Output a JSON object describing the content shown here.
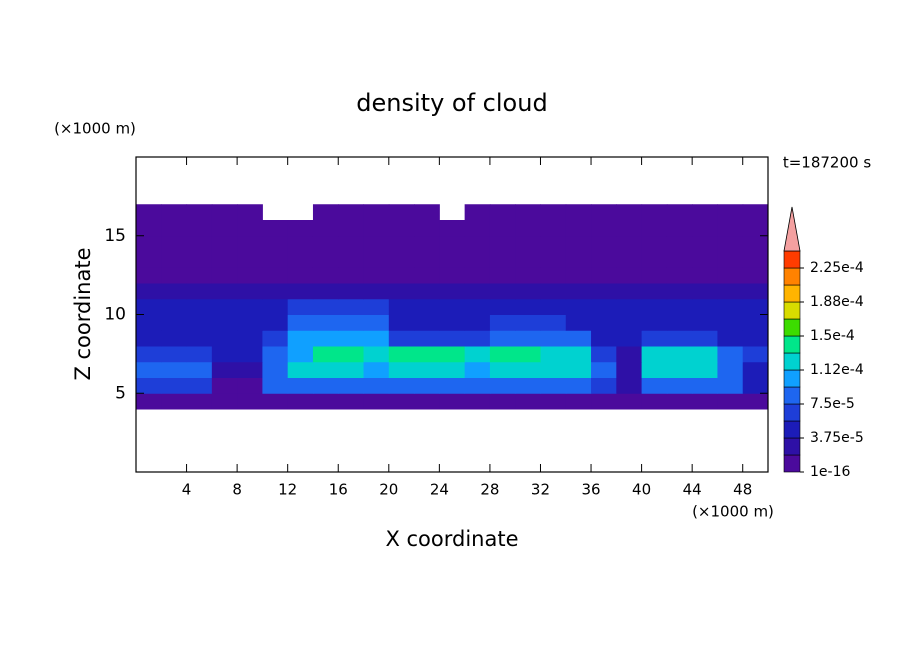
{
  "chart_data": {
    "type": "contour",
    "title": "density of cloud",
    "x_label": "X coordinate",
    "y_label": "Z coordinate",
    "x_unit": "(×1000 m)",
    "y_unit": "(×1000 m)",
    "time_label": "t=187200 s",
    "xlim": [
      0,
      50
    ],
    "ylim": [
      0,
      20
    ],
    "xticks": [
      4,
      8,
      12,
      16,
      20,
      24,
      28,
      32,
      36,
      40,
      44,
      48
    ],
    "yticks": [
      5,
      10,
      15
    ],
    "x": [
      1,
      3,
      5,
      7,
      9,
      11,
      13,
      15,
      17,
      19,
      21,
      23,
      25,
      27,
      29,
      31,
      33,
      35,
      37,
      39,
      41,
      43,
      45,
      47,
      49
    ],
    "y": [
      4.5,
      5.5,
      6.5,
      7.5,
      8.5,
      9.5,
      10.5,
      11.5,
      12.5,
      13.5,
      14.5,
      15.5,
      16.5
    ],
    "z": [
      [
        5e-06,
        5e-06,
        5e-06,
        5e-06,
        5e-06,
        5e-06,
        5e-06,
        5e-06,
        5e-06,
        5e-06,
        5e-06,
        5e-06,
        5e-06,
        5e-06,
        5e-06,
        5e-06,
        5e-06,
        5e-06,
        5e-06,
        5e-06,
        5e-06,
        5e-06,
        5e-06,
        5e-06,
        5e-06
      ],
      [
        6.5e-05,
        6.5e-05,
        6.5e-05,
        5e-06,
        5e-06,
        8.5e-05,
        8.5e-05,
        8.5e-05,
        8.5e-05,
        8.5e-05,
        8.5e-05,
        8.5e-05,
        8.5e-05,
        8.5e-05,
        8.5e-05,
        8.5e-05,
        8.5e-05,
        8.5e-05,
        6.5e-05,
        2.5e-05,
        8.5e-05,
        8.5e-05,
        8.5e-05,
        8.5e-05,
        4.5e-05
      ],
      [
        8.5e-05,
        8.5e-05,
        8.5e-05,
        2.5e-05,
        2.5e-05,
        8.5e-05,
        0.00012,
        0.00012,
        0.00012,
        0.0001,
        0.00012,
        0.00012,
        0.00012,
        0.0001,
        0.00012,
        0.00012,
        0.00012,
        0.00012,
        8.5e-05,
        2.5e-05,
        0.00012,
        0.00012,
        0.00012,
        8.5e-05,
        4.5e-05
      ],
      [
        6.5e-05,
        6.5e-05,
        6.5e-05,
        4.5e-05,
        4.5e-05,
        8.5e-05,
        0.0001,
        0.00014,
        0.00014,
        0.00012,
        0.00014,
        0.00014,
        0.00014,
        0.00012,
        0.00014,
        0.00014,
        0.00012,
        0.00012,
        6.5e-05,
        2.5e-05,
        0.00012,
        0.00012,
        0.00012,
        8.5e-05,
        6.5e-05
      ],
      [
        4.5e-05,
        4.5e-05,
        4.5e-05,
        4.5e-05,
        4.5e-05,
        6.5e-05,
        0.0001,
        0.0001,
        0.0001,
        0.0001,
        6.5e-05,
        6.5e-05,
        6.5e-05,
        6.5e-05,
        8.5e-05,
        8.5e-05,
        8.5e-05,
        8.5e-05,
        4.5e-05,
        4.5e-05,
        6.5e-05,
        6.5e-05,
        6.5e-05,
        4.5e-05,
        4.5e-05
      ],
      [
        4.5e-05,
        4.5e-05,
        4.5e-05,
        4.5e-05,
        4.5e-05,
        4.5e-05,
        8.5e-05,
        8.5e-05,
        8.5e-05,
        8.5e-05,
        4.5e-05,
        4.5e-05,
        4.5e-05,
        4.5e-05,
        6.5e-05,
        6.5e-05,
        6.5e-05,
        4.5e-05,
        4.5e-05,
        4.5e-05,
        4.5e-05,
        4.5e-05,
        4.5e-05,
        4.5e-05,
        4.5e-05
      ],
      [
        4.5e-05,
        4.5e-05,
        4.5e-05,
        4.5e-05,
        4.5e-05,
        4.5e-05,
        6.5e-05,
        6.5e-05,
        6.5e-05,
        6.5e-05,
        4.5e-05,
        4.5e-05,
        4.5e-05,
        4.5e-05,
        4.5e-05,
        4.5e-05,
        4.5e-05,
        4.5e-05,
        4.5e-05,
        4.5e-05,
        4.5e-05,
        4.5e-05,
        4.5e-05,
        4.5e-05,
        4.5e-05
      ],
      [
        2.5e-05,
        2.5e-05,
        2.5e-05,
        2.5e-05,
        2.5e-05,
        2.5e-05,
        2.5e-05,
        2.5e-05,
        2.5e-05,
        2.5e-05,
        2.5e-05,
        2.5e-05,
        2.5e-05,
        2.5e-05,
        2.5e-05,
        2.5e-05,
        2.5e-05,
        2.5e-05,
        2.5e-05,
        2.5e-05,
        2.5e-05,
        2.5e-05,
        2.5e-05,
        2.5e-05,
        2.5e-05
      ],
      [
        5e-06,
        5e-06,
        5e-06,
        5e-06,
        5e-06,
        5e-06,
        5e-06,
        5e-06,
        5e-06,
        5e-06,
        5e-06,
        5e-06,
        5e-06,
        5e-06,
        5e-06,
        5e-06,
        5e-06,
        5e-06,
        5e-06,
        5e-06,
        5e-06,
        5e-06,
        5e-06,
        5e-06,
        5e-06
      ],
      [
        5e-06,
        5e-06,
        5e-06,
        5e-06,
        5e-06,
        5e-06,
        5e-06,
        5e-06,
        5e-06,
        5e-06,
        5e-06,
        5e-06,
        5e-06,
        5e-06,
        5e-06,
        5e-06,
        5e-06,
        5e-06,
        5e-06,
        5e-06,
        5e-06,
        5e-06,
        5e-06,
        5e-06,
        5e-06
      ],
      [
        5e-06,
        5e-06,
        5e-06,
        5e-06,
        5e-06,
        5e-06,
        5e-06,
        5e-06,
        5e-06,
        5e-06,
        5e-06,
        5e-06,
        5e-06,
        5e-06,
        5e-06,
        5e-06,
        5e-06,
        5e-06,
        5e-06,
        5e-06,
        5e-06,
        5e-06,
        5e-06,
        5e-06,
        5e-06
      ],
      [
        5e-06,
        5e-06,
        5e-06,
        5e-06,
        5e-06,
        5e-06,
        5e-06,
        5e-06,
        5e-06,
        5e-06,
        5e-06,
        5e-06,
        5e-06,
        5e-06,
        5e-06,
        5e-06,
        5e-06,
        5e-06,
        5e-06,
        5e-06,
        5e-06,
        5e-06,
        5e-06,
        5e-06,
        5e-06
      ],
      [
        5e-06,
        5e-06,
        5e-06,
        5e-06,
        5e-06,
        null,
        null,
        5e-06,
        5e-06,
        5e-06,
        5e-06,
        5e-06,
        null,
        5e-06,
        5e-06,
        5e-06,
        5e-06,
        5e-06,
        5e-06,
        5e-06,
        5e-06,
        5e-06,
        5e-06,
        5e-06,
        5e-06
      ]
    ],
    "colorbar": {
      "levels": [
        1e-16,
        1.875e-05,
        3.75e-05,
        5.625e-05,
        7.5e-05,
        9.375e-05,
        0.0001125,
        0.00013125,
        0.00015,
        0.00016875,
        0.0001875,
        0.00020625,
        0.000225,
        0.00024375
      ],
      "colors": [
        "#4b0a9c",
        "#2e10a6",
        "#1c1cb8",
        "#1e3ed8",
        "#1e66f0",
        "#10a0ff",
        "#00d2d0",
        "#00e68a",
        "#3cdc00",
        "#d8dc00",
        "#ffb400",
        "#ff8200",
        "#ff3c00"
      ],
      "extend_color": "#f4a0a0",
      "ticks": [
        {
          "value": 1e-16,
          "label": "1e-16"
        },
        {
          "value": 3.75e-05,
          "label": "3.75e-5"
        },
        {
          "value": 7.5e-05,
          "label": "7.5e-5"
        },
        {
          "value": 0.0001125,
          "label": "1.12e-4"
        },
        {
          "value": 0.00015,
          "label": "1.5e-4"
        },
        {
          "value": 0.0001875,
          "label": "1.88e-4"
        },
        {
          "value": 0.000225,
          "label": "2.25e-4"
        }
      ]
    }
  }
}
